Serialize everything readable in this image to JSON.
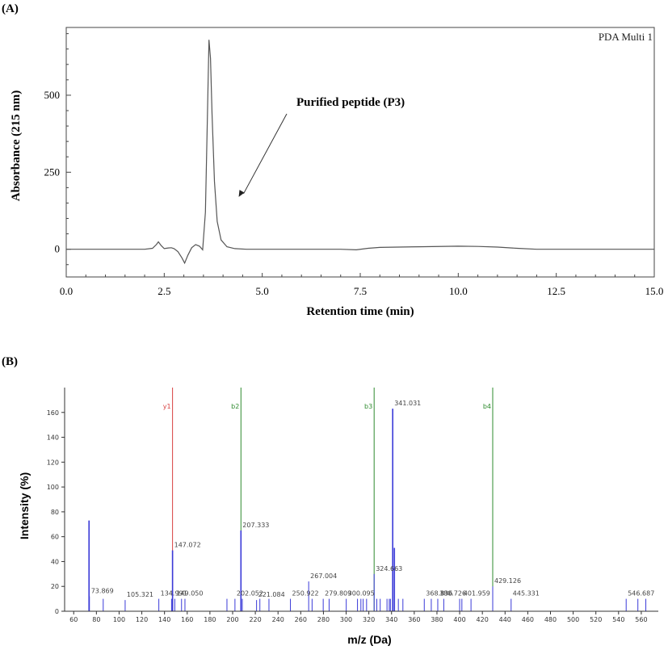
{
  "panel_labels": {
    "a": "(A)",
    "b": "(B)"
  },
  "colors": {
    "peak_line": "#555555",
    "frame": "#444444",
    "bar": "#3a3ad8",
    "y_ion": "#d84040",
    "b_ion": "#2e8b2e",
    "text": "#000000"
  },
  "chart_data": [
    {
      "type": "line",
      "title": "",
      "corner_label": "PDA Multi 1",
      "xlabel": "Retention time (min)",
      "ylabel": "Absorbance (215 nm)",
      "xlim": [
        0,
        15
      ],
      "ylim": [
        -90,
        720
      ],
      "x_ticks": [
        "0.0",
        "2.5",
        "5.0",
        "7.5",
        "10.0",
        "12.5",
        "15.0"
      ],
      "x_tick_values": [
        0,
        2.5,
        5,
        7.5,
        10,
        12.5,
        15
      ],
      "y_ticks": [
        "0",
        "250",
        "500"
      ],
      "y_tick_values": [
        0,
        250,
        500
      ],
      "annotation": {
        "text": "Purified peptide (P3)",
        "points_to_x": 4.4,
        "points_to_y": 170
      },
      "series": [
        {
          "x": [
            0,
            1.0,
            2.0,
            2.2,
            2.3,
            2.35,
            2.42,
            2.5,
            2.6,
            2.68,
            2.75,
            2.85,
            2.95,
            3.02,
            3.1,
            3.2,
            3.3,
            3.4,
            3.48,
            3.55,
            3.6,
            3.64,
            3.68,
            3.72,
            3.78,
            3.85,
            3.95,
            4.1,
            4.3,
            4.6,
            5.0,
            6.0,
            7.0,
            7.4,
            7.7,
            8.0,
            9.0,
            10.0,
            10.5,
            11.0,
            11.5,
            12.0,
            13.0,
            15.0
          ],
          "y": [
            0,
            0,
            0,
            3,
            15,
            24,
            12,
            2,
            4,
            5,
            2,
            -8,
            -28,
            -45,
            -20,
            5,
            15,
            10,
            -2,
            120,
            420,
            680,
            620,
            440,
            220,
            90,
            30,
            8,
            2,
            0,
            0,
            0,
            0,
            -2,
            3,
            6,
            8,
            10,
            9,
            7,
            3,
            0,
            0,
            0
          ]
        }
      ]
    },
    {
      "type": "bar",
      "title": "",
      "xlabel": "m/z (Da)",
      "ylabel": "Intensity (%)",
      "xlim": [
        52,
        575
      ],
      "ylim": [
        0,
        180
      ],
      "x_ticks": [
        "60",
        "80",
        "100",
        "120",
        "140",
        "160",
        "180",
        "200",
        "220",
        "240",
        "260",
        "280",
        "300",
        "320",
        "340",
        "360",
        "380",
        "400",
        "420",
        "440",
        "460",
        "480",
        "500",
        "520",
        "540",
        "560"
      ],
      "x_tick_values": [
        60,
        80,
        100,
        120,
        140,
        160,
        180,
        200,
        220,
        240,
        260,
        280,
        300,
        320,
        340,
        360,
        380,
        400,
        420,
        440,
        460,
        480,
        500,
        520,
        540,
        560
      ],
      "y_ticks": [
        "0",
        "20",
        "40",
        "60",
        "80",
        "100",
        "120",
        "140",
        "160"
      ],
      "y_tick_values": [
        0,
        20,
        40,
        60,
        80,
        100,
        120,
        140,
        160
      ],
      "peaks": [
        {
          "mz": 73.5,
          "intensity": 73
        },
        {
          "mz": 73.869,
          "intensity": 12,
          "label": "73.869"
        },
        {
          "mz": 86,
          "intensity": 10
        },
        {
          "mz": 105.321,
          "intensity": 9,
          "label": "105.321"
        },
        {
          "mz": 134.991,
          "intensity": 10,
          "label": "134.991"
        },
        {
          "mz": 146.2,
          "intensity": 10
        },
        {
          "mz": 147.072,
          "intensity": 49,
          "label": "147.072"
        },
        {
          "mz": 149.05,
          "intensity": 10,
          "label": "149.050"
        },
        {
          "mz": 155,
          "intensity": 10
        },
        {
          "mz": 158,
          "intensity": 10
        },
        {
          "mz": 195,
          "intensity": 10
        },
        {
          "mz": 202.052,
          "intensity": 10,
          "label": "202.052"
        },
        {
          "mz": 207.333,
          "intensity": 65,
          "label": "207.333"
        },
        {
          "mz": 208.5,
          "intensity": 10
        },
        {
          "mz": 221.084,
          "intensity": 9,
          "label": "221.084"
        },
        {
          "mz": 224,
          "intensity": 10
        },
        {
          "mz": 232,
          "intensity": 10
        },
        {
          "mz": 250.922,
          "intensity": 10,
          "label": "250.922"
        },
        {
          "mz": 267.004,
          "intensity": 24,
          "label": "267.004"
        },
        {
          "mz": 270,
          "intensity": 10
        },
        {
          "mz": 279.809,
          "intensity": 10,
          "label": "279.809"
        },
        {
          "mz": 285,
          "intensity": 10
        },
        {
          "mz": 300.095,
          "intensity": 10,
          "label": "300.095"
        },
        {
          "mz": 310,
          "intensity": 10
        },
        {
          "mz": 313,
          "intensity": 10
        },
        {
          "mz": 315,
          "intensity": 10
        },
        {
          "mz": 318,
          "intensity": 10
        },
        {
          "mz": 324.663,
          "intensity": 30,
          "label": "324.663"
        },
        {
          "mz": 327,
          "intensity": 10
        },
        {
          "mz": 330,
          "intensity": 10
        },
        {
          "mz": 336,
          "intensity": 10
        },
        {
          "mz": 338,
          "intensity": 10
        },
        {
          "mz": 339,
          "intensity": 10
        },
        {
          "mz": 341.031,
          "intensity": 163,
          "label": "341.031"
        },
        {
          "mz": 342.5,
          "intensity": 51
        },
        {
          "mz": 346,
          "intensity": 10
        },
        {
          "mz": 350,
          "intensity": 10
        },
        {
          "mz": 368.836,
          "intensity": 10,
          "label": "368.836"
        },
        {
          "mz": 375,
          "intensity": 10
        },
        {
          "mz": 380.726,
          "intensity": 10,
          "label": "380.726"
        },
        {
          "mz": 386,
          "intensity": 10
        },
        {
          "mz": 400,
          "intensity": 10
        },
        {
          "mz": 401.959,
          "intensity": 10,
          "label": "401.959"
        },
        {
          "mz": 410,
          "intensity": 10
        },
        {
          "mz": 429.126,
          "intensity": 20,
          "label": "429.126"
        },
        {
          "mz": 445.331,
          "intensity": 10,
          "label": "445.331"
        },
        {
          "mz": 546.687,
          "intensity": 10,
          "label": "546.687"
        },
        {
          "mz": 557,
          "intensity": 10
        },
        {
          "mz": 564,
          "intensity": 10
        }
      ],
      "fragment_lines": [
        {
          "label": "y1",
          "mz": 147.072,
          "ion": "y"
        },
        {
          "label": "b2",
          "mz": 207.333,
          "ion": "b"
        },
        {
          "label": "b3",
          "mz": 324.663,
          "ion": "b"
        },
        {
          "label": "b4",
          "mz": 429.126,
          "ion": "b"
        }
      ]
    }
  ]
}
